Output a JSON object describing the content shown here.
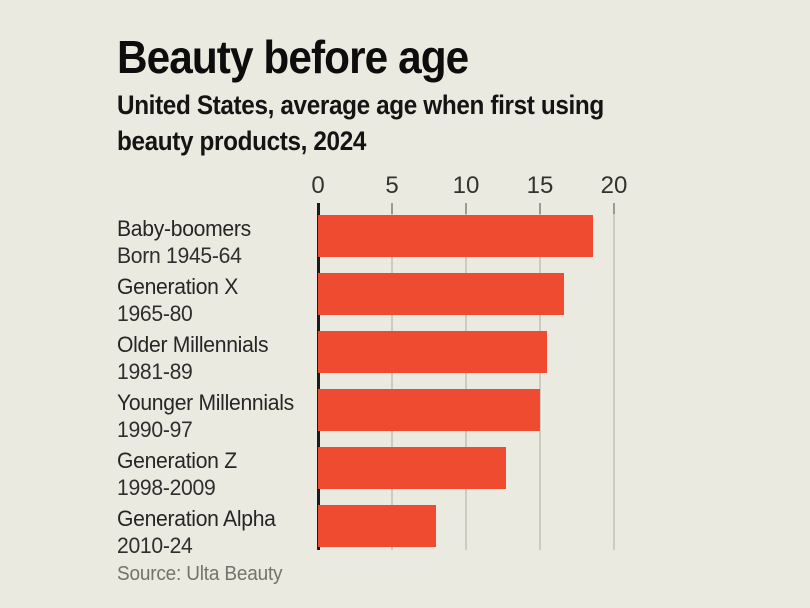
{
  "chart_data": {
    "type": "bar",
    "orientation": "horizontal",
    "title": "Beauty before age",
    "subtitle": "United States, average age when first using beauty products, 2024",
    "subtitle_lines": [
      "United States, average age when first using",
      "beauty products, 2024"
    ],
    "source": "Source: Ulta Beauty",
    "categories": [
      "Baby-boomers",
      "Generation X",
      "Older Millennials",
      "Younger Millennials",
      "Generation Z",
      "Generation Alpha"
    ],
    "category_sublabels": [
      "Born 1945-64",
      "1965-80",
      "1981-89",
      "1990-97",
      "1998-2009",
      "2010-24"
    ],
    "values": [
      18.6,
      16.6,
      15.5,
      15,
      12.7,
      8
    ],
    "xlim": [
      0,
      20
    ],
    "xticks": [
      0,
      5,
      10,
      15,
      20
    ],
    "xlabel": "",
    "ylabel": "",
    "grid": "vertical-gridlines",
    "legend": "none",
    "bar_color": "#ee4b31",
    "background_color": "#ebeae0",
    "axis_line_color": "#1c1c1c",
    "gridline_color": "#cbcbc1"
  }
}
